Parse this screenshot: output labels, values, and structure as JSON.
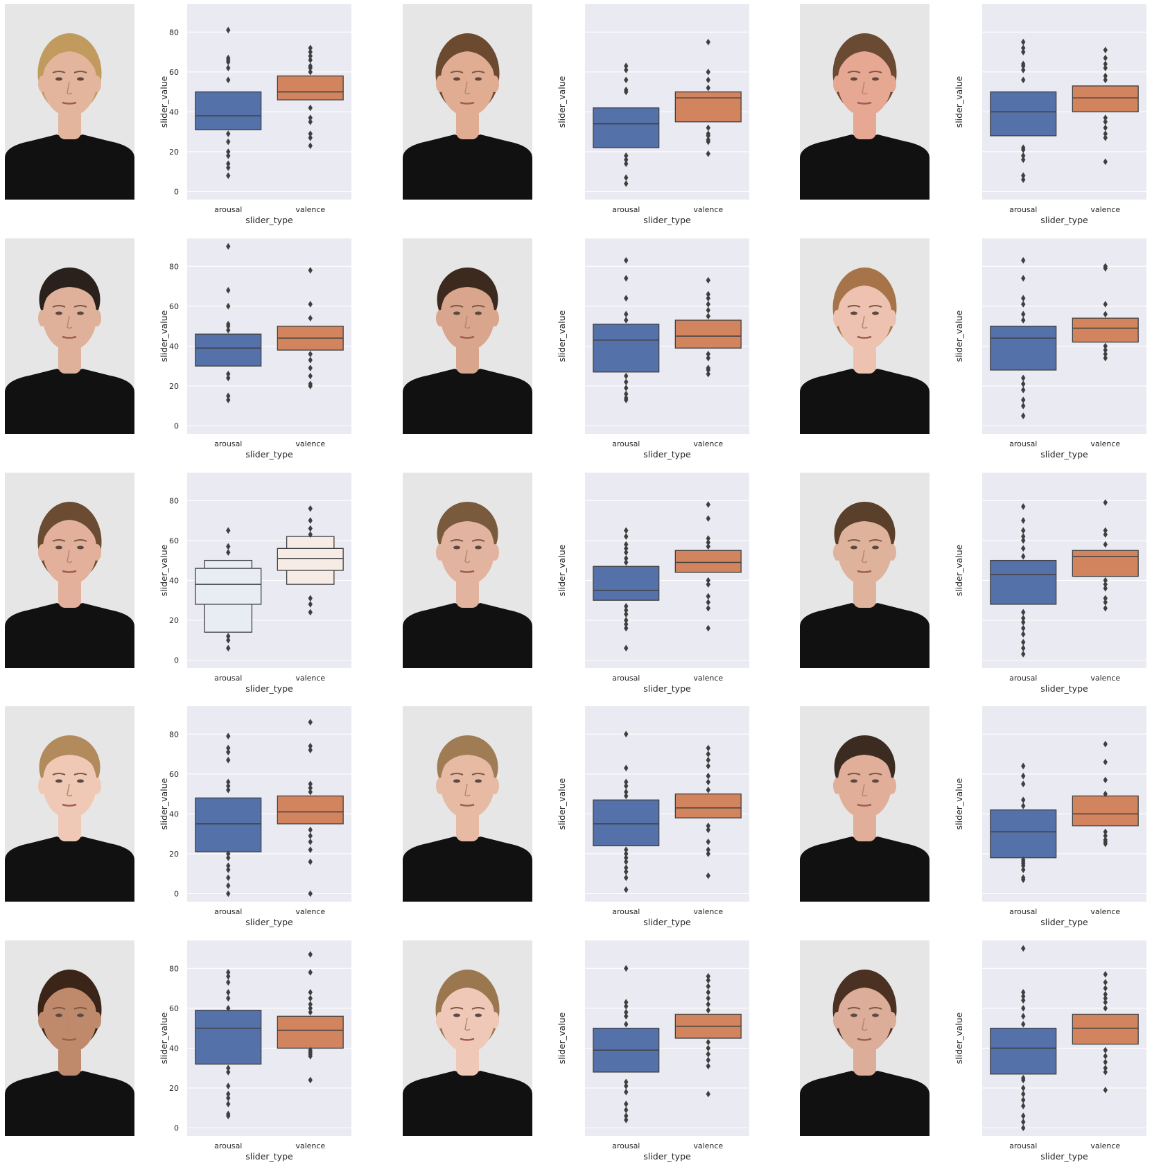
{
  "figure": {
    "colors": {
      "axes_bg": "#eaeaf2",
      "grid": "#ffffff",
      "arousal": "#5471a9",
      "valence": "#d2845e",
      "arousal_pale": "#e8edf4",
      "valence_pale": "#f7ebe6",
      "line": "#3f3f3f",
      "text": "#262626",
      "photo_bg": "#e6e6e6",
      "shirt": "#111111"
    },
    "faces": [
      {
        "sex": "female",
        "skin": "#e3b59d",
        "hair": "#c19a5e"
      },
      {
        "sex": "female",
        "skin": "#e0ad93",
        "hair": "#6b4a30"
      },
      {
        "sex": "female",
        "skin": "#e6a793",
        "hair": "#6a4a33"
      },
      {
        "sex": "male",
        "skin": "#dfb09a",
        "hair": "#2a211c"
      },
      {
        "sex": "male",
        "skin": "#d9a58c",
        "hair": "#3c2a1f"
      },
      {
        "sex": "female",
        "skin": "#edc2b1",
        "hair": "#a67448"
      },
      {
        "sex": "female",
        "skin": "#e2b09b",
        "hair": "#6b4c32"
      },
      {
        "sex": "male",
        "skin": "#e2b49f",
        "hair": "#7a5a3d"
      },
      {
        "sex": "male",
        "skin": "#dfb29c",
        "hair": "#5a3f2a"
      },
      {
        "sex": "male",
        "skin": "#f0c9b6",
        "hair": "#b28a5b"
      },
      {
        "sex": "male",
        "skin": "#e7baa4",
        "hair": "#a07c55"
      },
      {
        "sex": "male",
        "skin": "#e0ae99",
        "hair": "#3b2b20"
      },
      {
        "sex": "female",
        "skin": "#bf8a6c",
        "hair": "#3b2518"
      },
      {
        "sex": "female",
        "skin": "#efc8b8",
        "hair": "#9a774f"
      },
      {
        "sex": "female",
        "skin": "#dcad98",
        "hair": "#4a3122"
      }
    ]
  },
  "chart_data": [
    {
      "type": "boxplot",
      "xlabel": "slider_type",
      "ylabel": "slider_value",
      "ylim": [
        -4,
        94
      ],
      "yticks": [
        0,
        20,
        40,
        60,
        80
      ],
      "categories": [
        "arousal",
        "valence"
      ],
      "boxes": [
        {
          "q1": 31,
          "median": 38,
          "q3": 50,
          "fliers": [
            8,
            12,
            14,
            18,
            20,
            25,
            29,
            56,
            62,
            65,
            66,
            67,
            81
          ]
        },
        {
          "q1": 46,
          "median": 50,
          "q3": 58,
          "fliers": [
            23,
            27,
            29,
            35,
            37,
            42,
            60,
            62,
            63,
            66,
            68,
            70,
            72
          ]
        }
      ]
    },
    {
      "type": "boxplot",
      "xlabel": "slider_type",
      "ylabel": "slider_value",
      "ylim": [
        -4,
        94
      ],
      "yticks": [
        0,
        20,
        40,
        60,
        80
      ],
      "categories": [
        "arousal",
        "valence"
      ],
      "boxes": [
        {
          "q1": 22,
          "median": 34,
          "q3": 42,
          "fliers": [
            4,
            7,
            14,
            16,
            18,
            50,
            51,
            56,
            61,
            63
          ]
        },
        {
          "q1": 35,
          "median": 47,
          "q3": 50,
          "fliers": [
            19,
            25,
            26,
            28,
            29,
            32,
            52,
            56,
            60,
            75
          ]
        }
      ]
    },
    {
      "type": "boxplot",
      "xlabel": "slider_type",
      "ylabel": "slider_value",
      "ylim": [
        -4,
        94
      ],
      "yticks": [
        0,
        20,
        40,
        60,
        80
      ],
      "categories": [
        "arousal",
        "valence"
      ],
      "boxes": [
        {
          "q1": 28,
          "median": 40,
          "q3": 50,
          "fliers": [
            6,
            8,
            16,
            18,
            21,
            22,
            56,
            61,
            63,
            64,
            70,
            72,
            75
          ]
        },
        {
          "q1": 40,
          "median": 47,
          "q3": 53,
          "fliers": [
            15,
            27,
            29,
            32,
            35,
            37,
            56,
            58,
            62,
            64,
            67,
            71
          ]
        }
      ]
    },
    {
      "type": "boxplot",
      "xlabel": "slider_type",
      "ylabel": "slider_value",
      "ylim": [
        -4,
        94
      ],
      "yticks": [
        0,
        20,
        40,
        60,
        80
      ],
      "categories": [
        "arousal",
        "valence"
      ],
      "boxes": [
        {
          "q1": 30,
          "median": 39,
          "q3": 46,
          "fliers": [
            13,
            15,
            24,
            26,
            48,
            50,
            51,
            60,
            68,
            90
          ]
        },
        {
          "q1": 38,
          "median": 44,
          "q3": 50,
          "fliers": [
            20,
            21,
            25,
            29,
            33,
            36,
            54,
            61,
            78
          ]
        }
      ]
    },
    {
      "type": "boxplot",
      "xlabel": "slider_type",
      "ylabel": "slider_value",
      "ylim": [
        -4,
        94
      ],
      "yticks": [
        0,
        20,
        40,
        60,
        80
      ],
      "categories": [
        "arousal",
        "valence"
      ],
      "boxes": [
        {
          "q1": 27,
          "median": 43,
          "q3": 51,
          "fliers": [
            13,
            14,
            16,
            19,
            22,
            25,
            53,
            56,
            64,
            74,
            83
          ]
        },
        {
          "q1": 39,
          "median": 45,
          "q3": 53,
          "fliers": [
            26,
            28,
            29,
            34,
            36,
            55,
            58,
            61,
            64,
            66,
            73
          ]
        }
      ]
    },
    {
      "type": "boxplot",
      "xlabel": "slider_type",
      "ylabel": "slider_value",
      "ylim": [
        -4,
        94
      ],
      "yticks": [
        0,
        20,
        40,
        60,
        80
      ],
      "categories": [
        "arousal",
        "valence"
      ],
      "boxes": [
        {
          "q1": 28,
          "median": 44,
          "q3": 50,
          "fliers": [
            5,
            10,
            13,
            18,
            21,
            24,
            53,
            56,
            61,
            64,
            74,
            83
          ]
        },
        {
          "q1": 42,
          "median": 49,
          "q3": 54,
          "fliers": [
            34,
            36,
            38,
            40,
            56,
            61,
            79,
            80
          ]
        }
      ]
    },
    {
      "type": "boxen",
      "xlabel": "slider_type",
      "ylabel": "slider_value",
      "ylim": [
        -4,
        94
      ],
      "yticks": [
        0,
        20,
        40,
        60,
        80
      ],
      "categories": [
        "arousal",
        "valence"
      ],
      "boxes": [
        {
          "q1": 28,
          "median": 38,
          "q3": 46,
          "outer_low": 14,
          "outer_high": 50,
          "fliers": [
            6,
            10,
            12,
            54,
            57,
            65
          ]
        },
        {
          "q1": 45,
          "median": 51,
          "q3": 56,
          "outer_low": 38,
          "outer_high": 62,
          "fliers": [
            24,
            28,
            31,
            63,
            66,
            70,
            76
          ]
        }
      ]
    },
    {
      "type": "boxplot",
      "xlabel": "slider_type",
      "ylabel": "slider_value",
      "ylim": [
        -4,
        94
      ],
      "yticks": [
        0,
        20,
        40,
        60,
        80
      ],
      "categories": [
        "arousal",
        "valence"
      ],
      "boxes": [
        {
          "q1": 30,
          "median": 35,
          "q3": 47,
          "fliers": [
            6,
            16,
            18,
            20,
            23,
            25,
            27,
            49,
            51,
            54,
            56,
            58,
            62,
            65
          ]
        },
        {
          "q1": 44,
          "median": 49,
          "q3": 55,
          "fliers": [
            16,
            26,
            29,
            32,
            38,
            40,
            57,
            59,
            61,
            71,
            78
          ]
        }
      ]
    },
    {
      "type": "boxplot",
      "xlabel": "slider_type",
      "ylabel": "slider_value",
      "ylim": [
        -4,
        94
      ],
      "yticks": [
        0,
        20,
        40,
        60,
        80
      ],
      "categories": [
        "arousal",
        "valence"
      ],
      "boxes": [
        {
          "q1": 28,
          "median": 43,
          "q3": 50,
          "fliers": [
            3,
            6,
            9,
            13,
            16,
            19,
            21,
            24,
            52,
            56,
            60,
            62,
            65,
            70,
            77
          ]
        },
        {
          "q1": 42,
          "median": 52,
          "q3": 55,
          "fliers": [
            26,
            29,
            31,
            36,
            38,
            40,
            58,
            63,
            65,
            79
          ]
        }
      ]
    },
    {
      "type": "boxplot",
      "xlabel": "slider_type",
      "ylabel": "slider_value",
      "ylim": [
        -4,
        94
      ],
      "yticks": [
        0,
        20,
        40,
        60,
        80
      ],
      "categories": [
        "arousal",
        "valence"
      ],
      "boxes": [
        {
          "q1": 21,
          "median": 35,
          "q3": 48,
          "fliers": [
            0,
            4,
            8,
            12,
            14,
            18,
            20,
            52,
            54,
            56,
            67,
            71,
            73,
            79
          ]
        },
        {
          "q1": 35,
          "median": 41,
          "q3": 49,
          "fliers": [
            0,
            16,
            22,
            26,
            29,
            32,
            51,
            53,
            55,
            72,
            74,
            86
          ]
        }
      ]
    },
    {
      "type": "boxplot",
      "xlabel": "slider_type",
      "ylabel": "slider_value",
      "ylim": [
        -4,
        94
      ],
      "yticks": [
        0,
        20,
        40,
        60,
        80
      ],
      "categories": [
        "arousal",
        "valence"
      ],
      "boxes": [
        {
          "q1": 24,
          "median": 35,
          "q3": 47,
          "fliers": [
            2,
            8,
            11,
            13,
            16,
            18,
            20,
            22,
            49,
            51,
            54,
            56,
            63,
            80
          ]
        },
        {
          "q1": 38,
          "median": 43,
          "q3": 50,
          "fliers": [
            9,
            20,
            22,
            26,
            32,
            34,
            52,
            56,
            59,
            64,
            67,
            70,
            73
          ]
        }
      ]
    },
    {
      "type": "boxplot",
      "xlabel": "slider_type",
      "ylabel": "slider_value",
      "ylim": [
        -4,
        94
      ],
      "yticks": [
        0,
        20,
        40,
        60,
        80
      ],
      "categories": [
        "arousal",
        "valence"
      ],
      "boxes": [
        {
          "q1": 18,
          "median": 31,
          "q3": 42,
          "fliers": [
            7,
            8,
            12,
            14,
            15,
            16,
            17,
            44,
            47,
            55,
            59,
            64
          ]
        },
        {
          "q1": 34,
          "median": 40,
          "q3": 49,
          "fliers": [
            25,
            26,
            27,
            29,
            31,
            50,
            57,
            66,
            75
          ]
        }
      ]
    },
    {
      "type": "boxplot",
      "xlabel": "slider_type",
      "ylabel": "slider_value",
      "ylim": [
        -4,
        94
      ],
      "yticks": [
        0,
        20,
        40,
        60,
        80
      ],
      "categories": [
        "arousal",
        "valence"
      ],
      "boxes": [
        {
          "q1": 32,
          "median": 50,
          "q3": 59,
          "fliers": [
            6,
            7,
            12,
            15,
            17,
            21,
            28,
            30,
            60,
            65,
            68,
            73,
            76,
            78
          ]
        },
        {
          "q1": 40,
          "median": 49,
          "q3": 56,
          "fliers": [
            24,
            36,
            37,
            38,
            39,
            58,
            60,
            62,
            65,
            68,
            78,
            87
          ]
        }
      ]
    },
    {
      "type": "boxplot",
      "xlabel": "slider_type",
      "ylabel": "slider_value",
      "ylim": [
        -4,
        94
      ],
      "yticks": [
        0,
        20,
        40,
        60,
        80
      ],
      "categories": [
        "arousal",
        "valence"
      ],
      "boxes": [
        {
          "q1": 28,
          "median": 39,
          "q3": 50,
          "fliers": [
            4,
            6,
            9,
            12,
            18,
            21,
            23,
            52,
            56,
            58,
            61,
            63,
            80
          ]
        },
        {
          "q1": 45,
          "median": 51,
          "q3": 57,
          "fliers": [
            17,
            31,
            34,
            37,
            40,
            43,
            59,
            62,
            65,
            68,
            71,
            74,
            76
          ]
        }
      ]
    },
    {
      "type": "boxplot",
      "xlabel": "slider_type",
      "ylabel": "slider_value",
      "ylim": [
        -4,
        94
      ],
      "yticks": [
        0,
        20,
        40,
        60,
        80
      ],
      "categories": [
        "arousal",
        "valence"
      ],
      "boxes": [
        {
          "q1": 27,
          "median": 40,
          "q3": 50,
          "fliers": [
            0,
            3,
            6,
            11,
            14,
            17,
            20,
            24,
            25,
            52,
            56,
            60,
            64,
            66,
            68,
            90
          ]
        },
        {
          "q1": 42,
          "median": 50,
          "q3": 57,
          "fliers": [
            19,
            28,
            30,
            33,
            36,
            39,
            60,
            63,
            65,
            67,
            70,
            73,
            77
          ]
        }
      ]
    }
  ]
}
